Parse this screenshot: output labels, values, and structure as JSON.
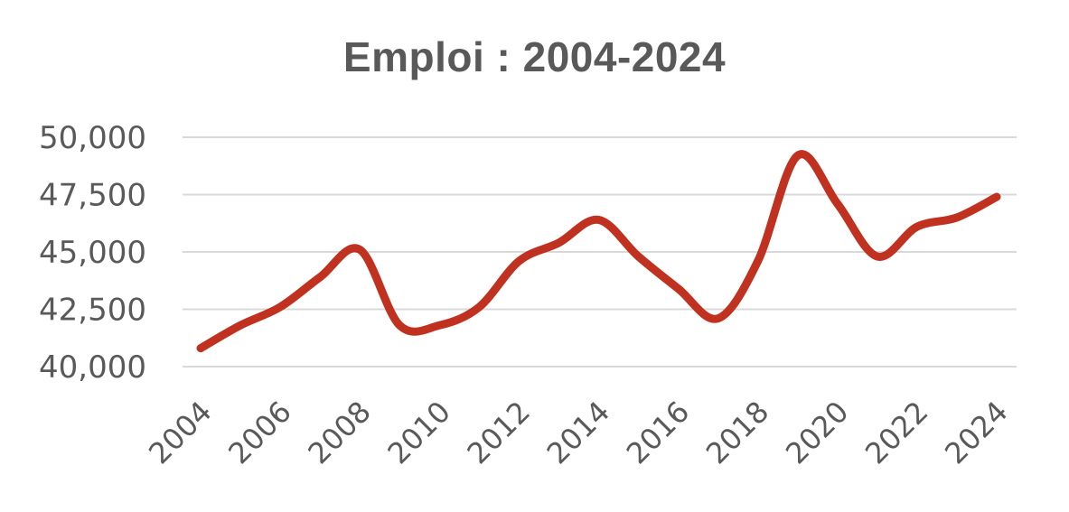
{
  "chart_data": {
    "type": "line",
    "title": "Emploi : 2004-2024",
    "xlabel": "",
    "ylabel": "",
    "x": [
      2004,
      2005,
      2006,
      2007,
      2008,
      2009,
      2010,
      2011,
      2012,
      2013,
      2014,
      2015,
      2016,
      2017,
      2018,
      2019,
      2020,
      2021,
      2022,
      2023,
      2024
    ],
    "x_tick_labels": [
      "2004",
      "2006",
      "2008",
      "2010",
      "2012",
      "2014",
      "2016",
      "2018",
      "2020",
      "2022",
      "2024"
    ],
    "y_tick_labels": [
      "40,000",
      "42,500",
      "45,000",
      "47,500",
      "50,000"
    ],
    "ylim": [
      40000,
      50000
    ],
    "grid": true,
    "legend": "none",
    "series": [
      {
        "color": "#c0311f",
        "values": [
          40800,
          41800,
          42600,
          43900,
          45100,
          41800,
          41800,
          42600,
          44600,
          45400,
          46400,
          44800,
          43400,
          42100,
          44600,
          49200,
          47100,
          44800,
          46100,
          46500,
          47400
        ]
      }
    ]
  }
}
